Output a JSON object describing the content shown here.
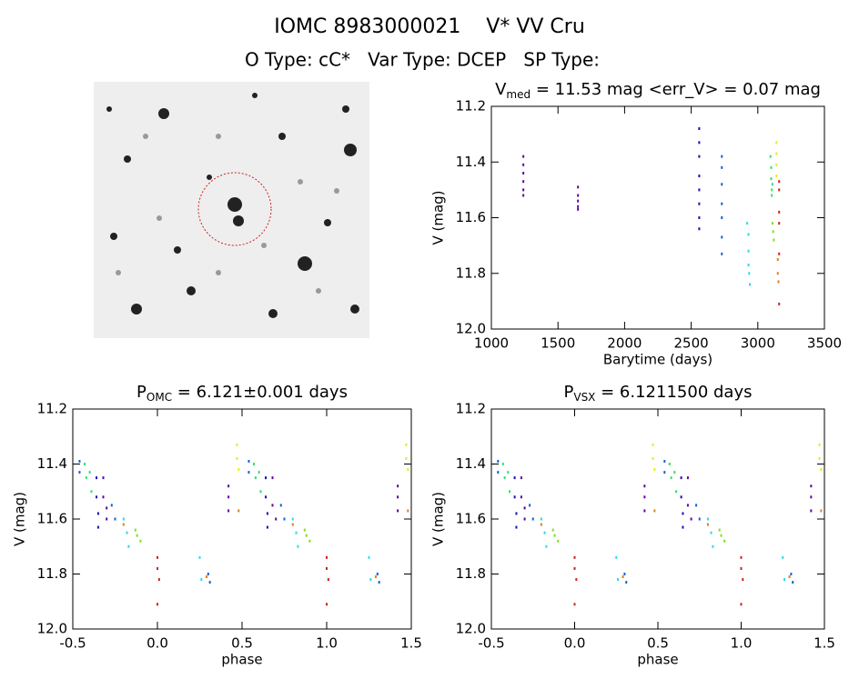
{
  "header": {
    "title": "IOMC 8983000021    V* VV Cru",
    "subtitle": "O Type: cC*   Var Type: DCEP   SP Type:"
  },
  "chart_data": [
    {
      "type": "scatter",
      "title_parts": [
        {
          "text": "V"
        },
        {
          "text": "med",
          "sub": true
        },
        {
          "text": " = 11.53 mag <err_V> = 0.07 mag"
        }
      ],
      "x_label": "Barytime (days)",
      "y_label": "V (mag)",
      "xlim": [
        1000,
        3500
      ],
      "xticks": [
        1000,
        1500,
        2000,
        2500,
        3000,
        3500
      ],
      "ylim": [
        12.0,
        11.2
      ],
      "yticks": [
        11.2,
        11.4,
        11.6,
        11.8,
        {
          "value": 12,
          "label": "12.0"
        }
      ],
      "series": [
        {
          "color": "#5a0a9a",
          "x": [
            1240,
            1240,
            1240,
            1240,
            1240,
            1240,
            1650,
            1650,
            1650,
            1650,
            1650
          ],
          "y": [
            11.38,
            11.41,
            11.44,
            11.47,
            11.5,
            11.52,
            11.49,
            11.52,
            11.54,
            11.56,
            11.57
          ]
        },
        {
          "color": "#1a10b0",
          "x": [
            2560,
            2560,
            2560,
            2560,
            2560,
            2560,
            2560,
            2560
          ],
          "y": [
            11.28,
            11.33,
            11.38,
            11.45,
            11.5,
            11.55,
            11.6,
            11.64
          ]
        },
        {
          "color": "#1060d8",
          "x": [
            2730,
            2730,
            2730,
            2730,
            2730,
            2730,
            2730
          ],
          "y": [
            11.38,
            11.42,
            11.48,
            11.55,
            11.6,
            11.67,
            11.73
          ]
        },
        {
          "color": "#30d8e8",
          "x": [
            2920,
            2930,
            2930,
            2930,
            2935,
            2940
          ],
          "y": [
            11.62,
            11.66,
            11.72,
            11.77,
            11.8,
            11.84
          ]
        },
        {
          "color": "#30e070",
          "x": [
            3095,
            3100,
            3100,
            3105,
            3105,
            3110
          ],
          "y": [
            11.38,
            11.42,
            11.46,
            11.5,
            11.52,
            11.48
          ]
        },
        {
          "color": "#80e020",
          "x": [
            3110,
            3115,
            3120
          ],
          "y": [
            11.62,
            11.65,
            11.68
          ]
        },
        {
          "color": "#e8e820",
          "x": [
            3140,
            3140,
            3140,
            3140
          ],
          "y": [
            11.33,
            11.37,
            11.41,
            11.45
          ]
        },
        {
          "color": "#e08020",
          "x": [
            3150,
            3150,
            3155
          ],
          "y": [
            11.75,
            11.8,
            11.83
          ]
        },
        {
          "color": "#d02020",
          "x": [
            3160,
            3160,
            3160,
            3160,
            3160,
            3160
          ],
          "y": [
            11.47,
            11.5,
            11.58,
            11.62,
            11.73,
            11.91
          ]
        }
      ]
    },
    {
      "type": "scatter",
      "title_parts": [
        {
          "text": "P"
        },
        {
          "text": "OMC",
          "sub": true
        },
        {
          "text": " = 6.121±0.001 days"
        }
      ],
      "x_label": "phase",
      "y_label": "V (mag)",
      "xlim": [
        -0.5,
        1.5
      ],
      "xticks": [
        -0.5,
        {
          "value": 0,
          "label": "0.0"
        },
        0.5,
        {
          "value": 1,
          "label": "1.0"
        },
        1.5
      ],
      "ylim": [
        12.0,
        11.2
      ],
      "yticks": [
        11.2,
        11.4,
        11.6,
        11.8,
        {
          "value": 12,
          "label": "12.0"
        }
      ],
      "series": [
        {
          "color": "#5a0a9a",
          "x": [
            -0.32,
            -0.32,
            -0.3,
            -0.3,
            0.42,
            0.42,
            0.42,
            0.68,
            0.68,
            0.7,
            1.42,
            1.42,
            1.42
          ],
          "y": [
            11.45,
            11.52,
            11.56,
            11.6,
            11.48,
            11.52,
            11.57,
            11.45,
            11.55,
            11.6,
            11.48,
            11.52,
            11.57
          ]
        },
        {
          "color": "#1a10b0",
          "x": [
            -0.36,
            -0.36,
            -0.35,
            -0.35,
            0.64,
            0.64,
            0.65,
            0.65
          ],
          "y": [
            11.45,
            11.52,
            11.58,
            11.63,
            11.45,
            11.52,
            11.58,
            11.63
          ]
        },
        {
          "color": "#1060d8",
          "x": [
            -0.46,
            -0.46,
            -0.27,
            -0.25,
            0.3,
            0.31,
            0.54,
            0.54,
            0.73,
            0.75,
            1.3,
            1.31
          ],
          "y": [
            11.39,
            11.43,
            11.55,
            11.6,
            11.8,
            11.83,
            11.39,
            11.43,
            11.55,
            11.6,
            11.8,
            11.83
          ]
        },
        {
          "color": "#30d8e8",
          "x": [
            -0.2,
            -0.18,
            -0.17,
            0.25,
            0.26,
            0.8,
            0.82,
            0.83,
            1.25,
            1.26
          ],
          "y": [
            11.6,
            11.65,
            11.7,
            11.74,
            11.82,
            11.6,
            11.65,
            11.7,
            11.74,
            11.82
          ]
        },
        {
          "color": "#30e070",
          "x": [
            -0.43,
            -0.42,
            -0.4,
            -0.39,
            0.57,
            0.58,
            0.6,
            0.61
          ],
          "y": [
            11.4,
            11.45,
            11.43,
            11.5,
            11.4,
            11.45,
            11.43,
            11.5
          ]
        },
        {
          "color": "#80e020",
          "x": [
            -0.13,
            -0.12,
            -0.1,
            0.87,
            0.88,
            0.9
          ],
          "y": [
            11.64,
            11.66,
            11.68,
            11.64,
            11.66,
            11.68
          ]
        },
        {
          "color": "#e8e820",
          "x": [
            0.47,
            0.47,
            0.48,
            1.47,
            1.47,
            1.48
          ],
          "y": [
            11.33,
            11.38,
            11.42,
            11.33,
            11.38,
            11.42
          ]
        },
        {
          "color": "#e08020",
          "x": [
            -0.2,
            0.29,
            0.8,
            1.29,
            0.48,
            1.48
          ],
          "y": [
            11.62,
            11.81,
            11.62,
            11.81,
            11.57,
            11.57
          ]
        },
        {
          "color": "#d02020",
          "x": [
            0.0,
            0.0,
            0.01,
            0.0,
            1.0,
            1.0,
            1.01,
            1.0
          ],
          "y": [
            11.74,
            11.78,
            11.82,
            11.91,
            11.74,
            11.78,
            11.82,
            11.91
          ]
        }
      ]
    },
    {
      "type": "scatter",
      "title_parts": [
        {
          "text": "P"
        },
        {
          "text": "VSX",
          "sub": true
        },
        {
          "text": " = 6.1211500 days"
        }
      ],
      "x_label": "phase",
      "y_label": "V (mag)",
      "xlim": [
        -0.5,
        1.5
      ],
      "xticks": [
        -0.5,
        {
          "value": 0,
          "label": "0.0"
        },
        0.5,
        {
          "value": 1,
          "label": "1.0"
        },
        1.5
      ],
      "ylim": [
        12.0,
        11.2
      ],
      "yticks": [
        11.2,
        11.4,
        11.6,
        11.8,
        {
          "value": 12,
          "label": "12.0"
        }
      ],
      "series": [
        {
          "color": "#5a0a9a",
          "x": [
            -0.32,
            -0.32,
            -0.3,
            -0.3,
            0.42,
            0.42,
            0.42,
            0.68,
            0.68,
            0.7,
            1.42,
            1.42,
            1.42
          ],
          "y": [
            11.45,
            11.52,
            11.56,
            11.6,
            11.48,
            11.52,
            11.57,
            11.45,
            11.55,
            11.6,
            11.48,
            11.52,
            11.57
          ]
        },
        {
          "color": "#1a10b0",
          "x": [
            -0.36,
            -0.36,
            -0.35,
            -0.35,
            0.64,
            0.64,
            0.65,
            0.65
          ],
          "y": [
            11.45,
            11.52,
            11.58,
            11.63,
            11.45,
            11.52,
            11.58,
            11.63
          ]
        },
        {
          "color": "#1060d8",
          "x": [
            -0.46,
            -0.46,
            -0.27,
            -0.25,
            0.3,
            0.31,
            0.54,
            0.54,
            0.73,
            0.75,
            1.3,
            1.31
          ],
          "y": [
            11.39,
            11.43,
            11.55,
            11.6,
            11.8,
            11.83,
            11.39,
            11.43,
            11.55,
            11.6,
            11.8,
            11.83
          ]
        },
        {
          "color": "#30d8e8",
          "x": [
            -0.2,
            -0.18,
            -0.17,
            0.25,
            0.26,
            0.8,
            0.82,
            0.83,
            1.25,
            1.26
          ],
          "y": [
            11.6,
            11.65,
            11.7,
            11.74,
            11.82,
            11.6,
            11.65,
            11.7,
            11.74,
            11.82
          ]
        },
        {
          "color": "#30e070",
          "x": [
            -0.43,
            -0.42,
            -0.4,
            -0.39,
            0.57,
            0.58,
            0.6,
            0.61
          ],
          "y": [
            11.4,
            11.45,
            11.43,
            11.5,
            11.4,
            11.45,
            11.43,
            11.5
          ]
        },
        {
          "color": "#80e020",
          "x": [
            -0.13,
            -0.12,
            -0.1,
            0.87,
            0.88,
            0.9
          ],
          "y": [
            11.64,
            11.66,
            11.68,
            11.64,
            11.66,
            11.68
          ]
        },
        {
          "color": "#e8e820",
          "x": [
            0.47,
            0.47,
            0.48,
            1.47,
            1.47,
            1.48
          ],
          "y": [
            11.33,
            11.38,
            11.42,
            11.33,
            11.38,
            11.42
          ]
        },
        {
          "color": "#e08020",
          "x": [
            -0.2,
            0.29,
            0.8,
            1.29,
            0.48,
            1.48
          ],
          "y": [
            11.62,
            11.81,
            11.62,
            11.81,
            11.57,
            11.57
          ]
        },
        {
          "color": "#d02020",
          "x": [
            0.0,
            0.0,
            0.01,
            0.0,
            1.0,
            1.0,
            1.01,
            1.0
          ],
          "y": [
            11.74,
            11.78,
            11.82,
            11.91,
            11.74,
            11.78,
            11.82,
            11.91
          ]
        }
      ]
    }
  ]
}
